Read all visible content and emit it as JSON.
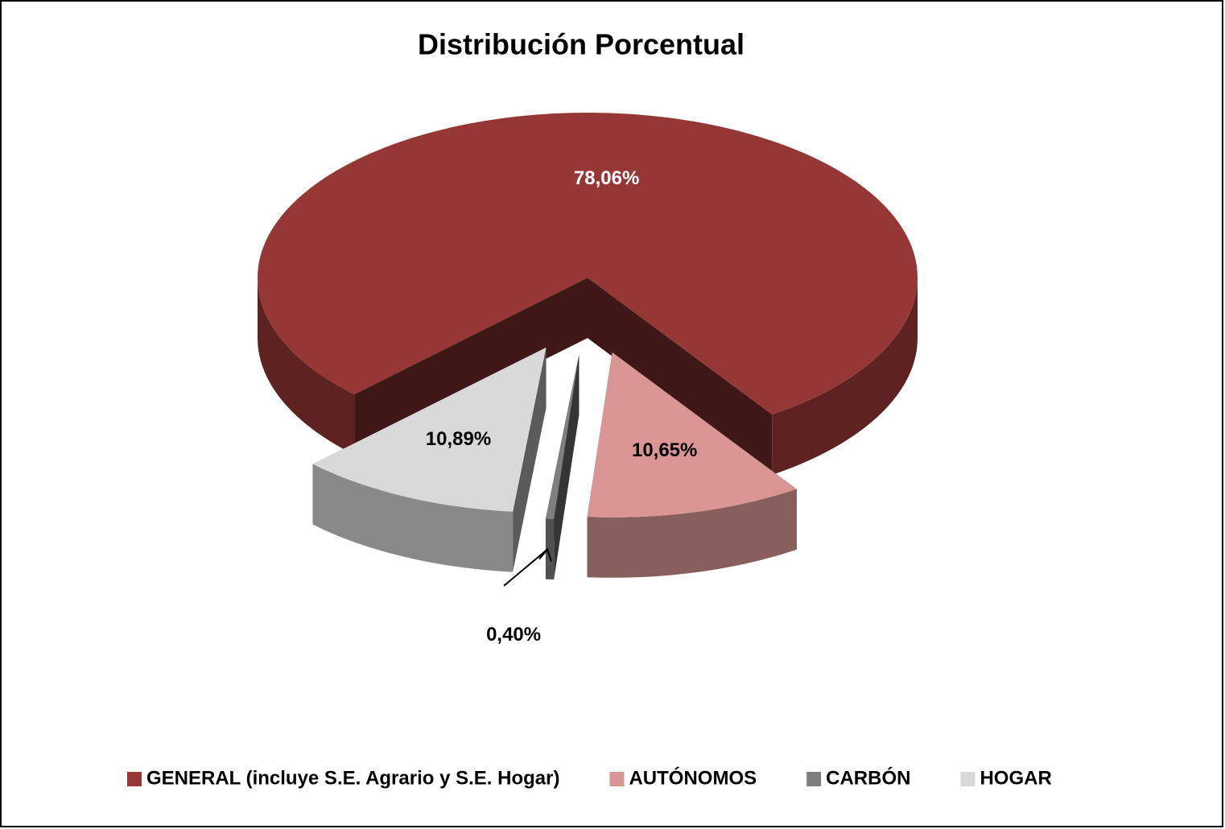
{
  "chart_data": {
    "type": "pie",
    "title": "Distribución Porcentual",
    "categories": [
      "GENERAL (incluye S.E. Agrario y S.E. Hogar)",
      "AUTÓNOMOS",
      "CARBÓN",
      "HOGAR"
    ],
    "values": [
      78.06,
      10.65,
      0.4,
      10.89
    ],
    "value_labels": [
      "78,06%",
      "10,65%",
      "0,40%",
      "10,89%"
    ],
    "colors": [
      "#953735",
      "#d99694",
      "#7f7f7f",
      "#d9d9d9"
    ],
    "legend": "bottom"
  }
}
